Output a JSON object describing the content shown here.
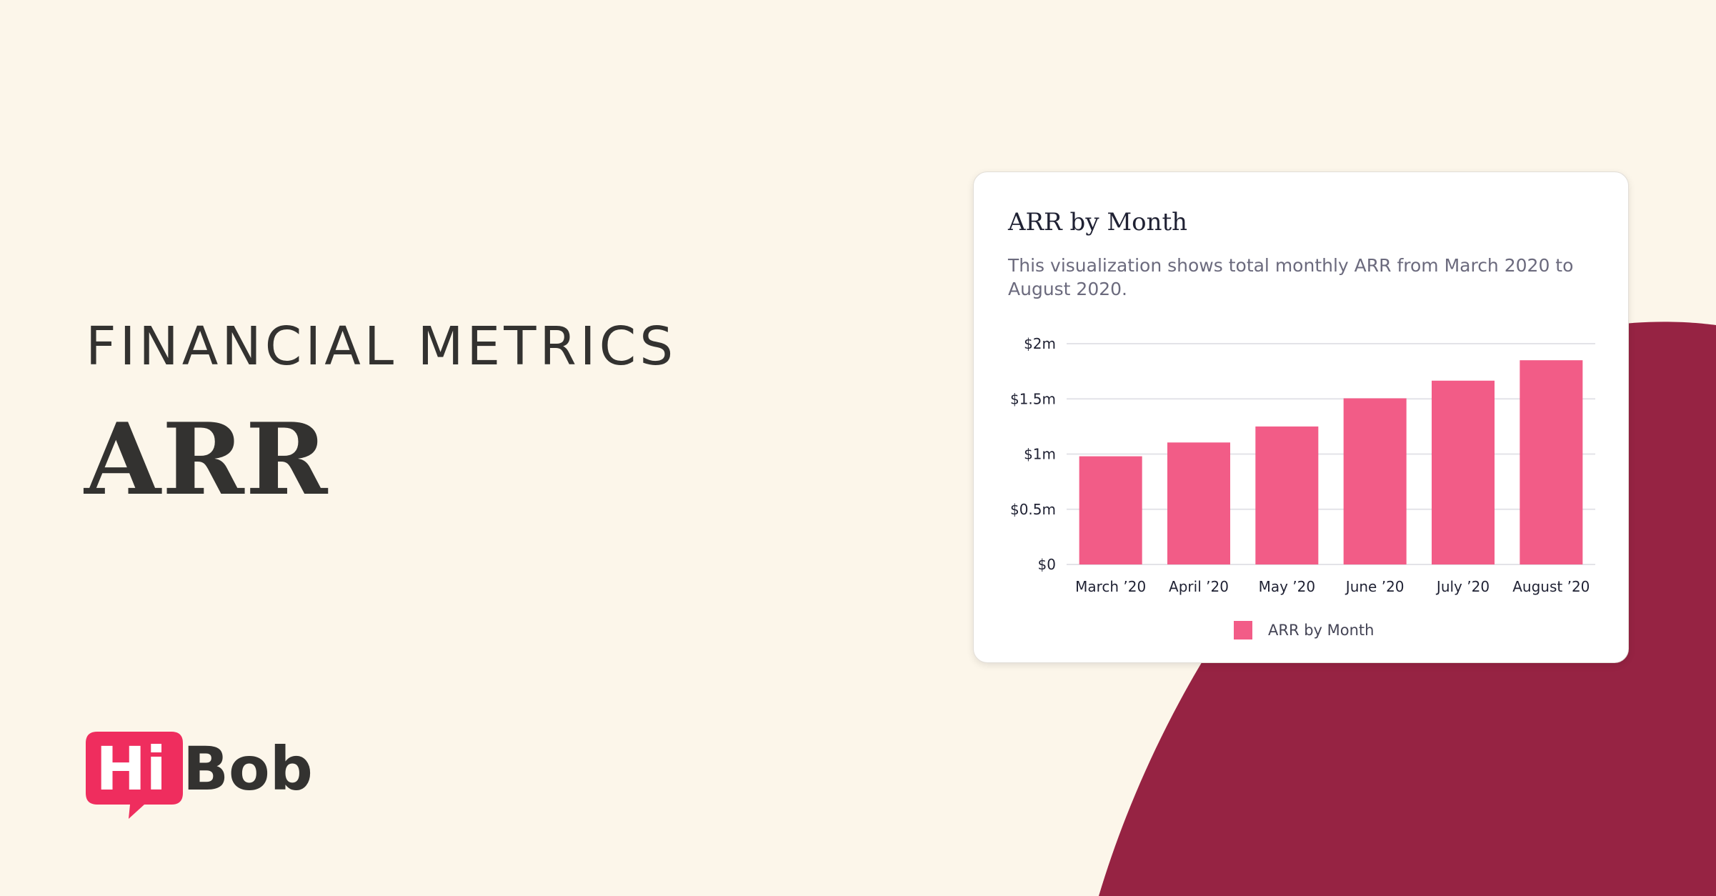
{
  "page": {
    "eyebrow": "FINANCIAL METRICS",
    "headline": "ARR",
    "background_color": "#fcf6ea",
    "blob_color": "#962343",
    "text_color": "#333230"
  },
  "logo": {
    "hi": "Hi",
    "bob": "Bob",
    "hi_color": "#ef2d5e"
  },
  "chart_data": {
    "type": "bar",
    "title": "ARR by Month",
    "subtitle": "This visualization shows total monthly ARR from March 2020 to August 2020.",
    "categories": [
      "March ’20",
      "April ’20",
      "May ’20",
      "June ’20",
      "July ’20",
      "August ’20"
    ],
    "series": [
      {
        "name": "ARR by Month",
        "values": [
          980000,
          1105000,
          1250000,
          1505000,
          1665000,
          1850000
        ],
        "color": "#f25c87"
      }
    ],
    "y_ticks": [
      {
        "value": 0,
        "label": "$0"
      },
      {
        "value": 500000,
        "label": "$0.5m"
      },
      {
        "value": 1000000,
        "label": "$1m"
      },
      {
        "value": 1500000,
        "label": "$1.5m"
      },
      {
        "value": 2000000,
        "label": "$2m"
      }
    ],
    "ylim": [
      0,
      2000000
    ],
    "xlabel": "",
    "ylabel": "",
    "grid": true,
    "legend_position": "bottom-center"
  }
}
